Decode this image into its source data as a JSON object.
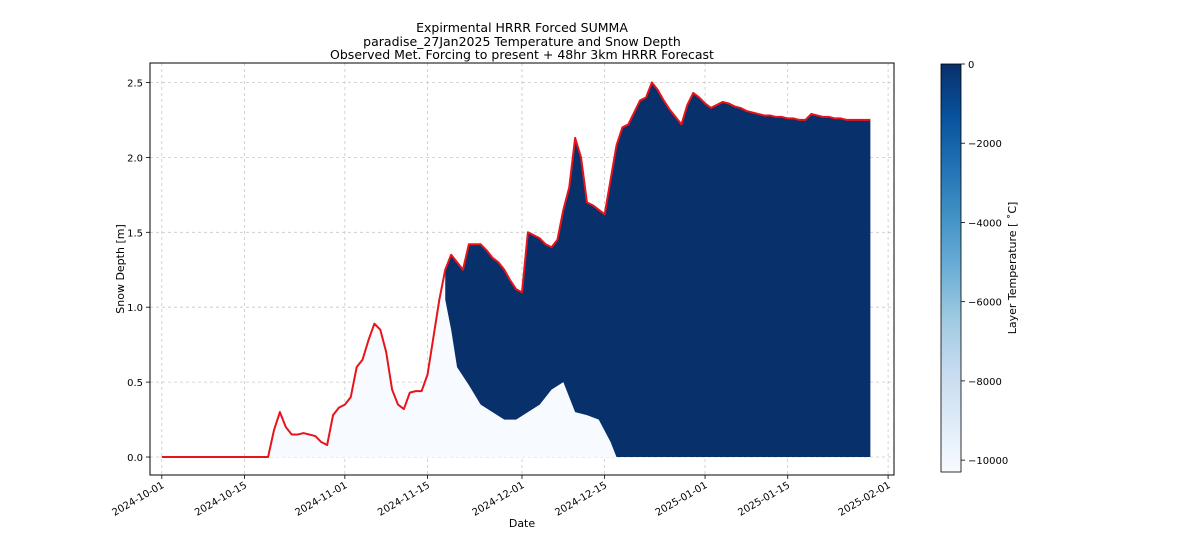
{
  "chart_data": {
    "type": "area",
    "title_lines": [
      "Expirmental HRRR Forced SUMMA",
      "paradise_27Jan2025 Temperature and Snow Depth",
      "Observed Met. Forcing to present + 48hr 3km HRRR Forecast"
    ],
    "xlabel": "Date",
    "ylabel": "Snow Depth [m]",
    "x_ticks": [
      "2024-10-01",
      "2024-10-15",
      "2024-11-01",
      "2024-11-15",
      "2024-12-01",
      "2024-12-15",
      "2025-01-01",
      "2025-01-15",
      "2025-02-01"
    ],
    "y_ticks": [
      "0.0",
      "0.5",
      "1.0",
      "1.5",
      "2.0",
      "2.5"
    ],
    "xlim": [
      "2024-09-29",
      "2025-02-02"
    ],
    "ylim": [
      -0.12,
      2.63
    ],
    "grid": true,
    "series": [
      {
        "color": "#e8141b",
        "x": [
          "2024-10-01",
          "2024-10-19",
          "2024-10-20",
          "2024-10-21",
          "2024-10-22",
          "2024-10-23",
          "2024-10-24",
          "2024-10-25",
          "2024-10-26",
          "2024-10-27",
          "2024-10-28",
          "2024-10-29",
          "2024-10-30",
          "2024-10-31",
          "2024-11-01",
          "2024-11-02",
          "2024-11-03",
          "2024-11-04",
          "2024-11-05",
          "2024-11-06",
          "2024-11-07",
          "2024-11-08",
          "2024-11-09",
          "2024-11-10",
          "2024-11-11",
          "2024-11-12",
          "2024-11-13",
          "2024-11-14",
          "2024-11-15",
          "2024-11-16",
          "2024-11-17",
          "2024-11-18",
          "2024-11-19",
          "2024-11-20",
          "2024-11-21",
          "2024-11-22",
          "2024-11-23",
          "2024-11-24",
          "2024-11-25",
          "2024-11-26",
          "2024-11-27",
          "2024-11-28",
          "2024-11-29",
          "2024-11-30",
          "2024-12-01",
          "2024-12-02",
          "2024-12-03",
          "2024-12-04",
          "2024-12-05",
          "2024-12-06",
          "2024-12-07",
          "2024-12-08",
          "2024-12-09",
          "2024-12-10",
          "2024-12-11",
          "2024-12-12",
          "2024-12-13",
          "2024-12-14",
          "2024-12-15",
          "2024-12-16",
          "2024-12-17",
          "2024-12-18",
          "2024-12-19",
          "2024-12-20",
          "2024-12-21",
          "2024-12-22",
          "2024-12-23",
          "2024-12-24",
          "2024-12-25",
          "2024-12-26",
          "2024-12-27",
          "2024-12-28",
          "2024-12-29",
          "2024-12-30",
          "2024-12-31",
          "2025-01-01",
          "2025-01-02",
          "2025-01-03",
          "2025-01-04",
          "2025-01-05",
          "2025-01-06",
          "2025-01-07",
          "2025-01-08",
          "2025-01-09",
          "2025-01-10",
          "2025-01-11",
          "2025-01-12",
          "2025-01-13",
          "2025-01-14",
          "2025-01-15",
          "2025-01-16",
          "2025-01-17",
          "2025-01-18",
          "2025-01-19",
          "2025-01-20",
          "2025-01-21",
          "2025-01-22",
          "2025-01-23",
          "2025-01-24",
          "2025-01-25",
          "2025-01-26",
          "2025-01-27",
          "2025-01-28",
          "2025-01-29"
        ],
        "values": [
          0.0,
          0.0,
          0.18,
          0.3,
          0.2,
          0.15,
          0.15,
          0.16,
          0.15,
          0.14,
          0.1,
          0.08,
          0.28,
          0.33,
          0.35,
          0.4,
          0.6,
          0.65,
          0.78,
          0.89,
          0.85,
          0.7,
          0.45,
          0.35,
          0.32,
          0.43,
          0.44,
          0.44,
          0.55,
          0.8,
          1.05,
          1.25,
          1.35,
          1.3,
          1.25,
          1.42,
          1.42,
          1.42,
          1.38,
          1.33,
          1.3,
          1.25,
          1.18,
          1.12,
          1.1,
          1.5,
          1.48,
          1.46,
          1.42,
          1.4,
          1.45,
          1.65,
          1.8,
          2.13,
          2.0,
          1.7,
          1.68,
          1.65,
          1.62,
          1.85,
          2.08,
          2.2,
          2.22,
          2.3,
          2.38,
          2.4,
          2.5,
          2.45,
          2.38,
          2.32,
          2.27,
          2.22,
          2.35,
          2.43,
          2.4,
          2.36,
          2.33,
          2.35,
          2.37,
          2.36,
          2.34,
          2.33,
          2.31,
          2.3,
          2.29,
          2.28,
          2.28,
          2.27,
          2.27,
          2.26,
          2.26,
          2.25,
          2.25,
          2.29,
          2.28,
          2.27,
          2.27,
          2.26,
          2.26,
          2.25,
          2.25,
          2.25,
          2.25,
          2.25
        ]
      }
    ],
    "filled_layer_bottom": {
      "x": [
        "2024-11-18",
        "2024-11-19",
        "2024-11-20",
        "2024-11-22",
        "2024-11-24",
        "2024-11-26",
        "2024-11-28",
        "2024-11-30",
        "2024-12-02",
        "2024-12-04",
        "2024-12-06",
        "2024-12-08",
        "2024-12-10",
        "2024-12-12",
        "2024-12-14",
        "2024-12-16",
        "2024-12-17"
      ],
      "values": [
        1.05,
        0.85,
        0.6,
        0.48,
        0.35,
        0.3,
        0.25,
        0.25,
        0.3,
        0.35,
        0.45,
        0.5,
        0.3,
        0.28,
        0.25,
        0.1,
        0.0
      ]
    },
    "colorbar": {
      "label": "Layer Temperature [$^\\circ$C]",
      "ticks": [
        "0",
        "−2000",
        "−4000",
        "−6000",
        "−8000",
        "−10000"
      ],
      "range": [
        -10300,
        0
      ],
      "colors": [
        "#f7fbff",
        "#deebf7",
        "#c6dbef",
        "#9ecae1",
        "#6baed6",
        "#4292c6",
        "#2171b5",
        "#08519c",
        "#08306b"
      ],
      "fill_color": "#08306b",
      "background_fill": "#f7fbff"
    }
  }
}
